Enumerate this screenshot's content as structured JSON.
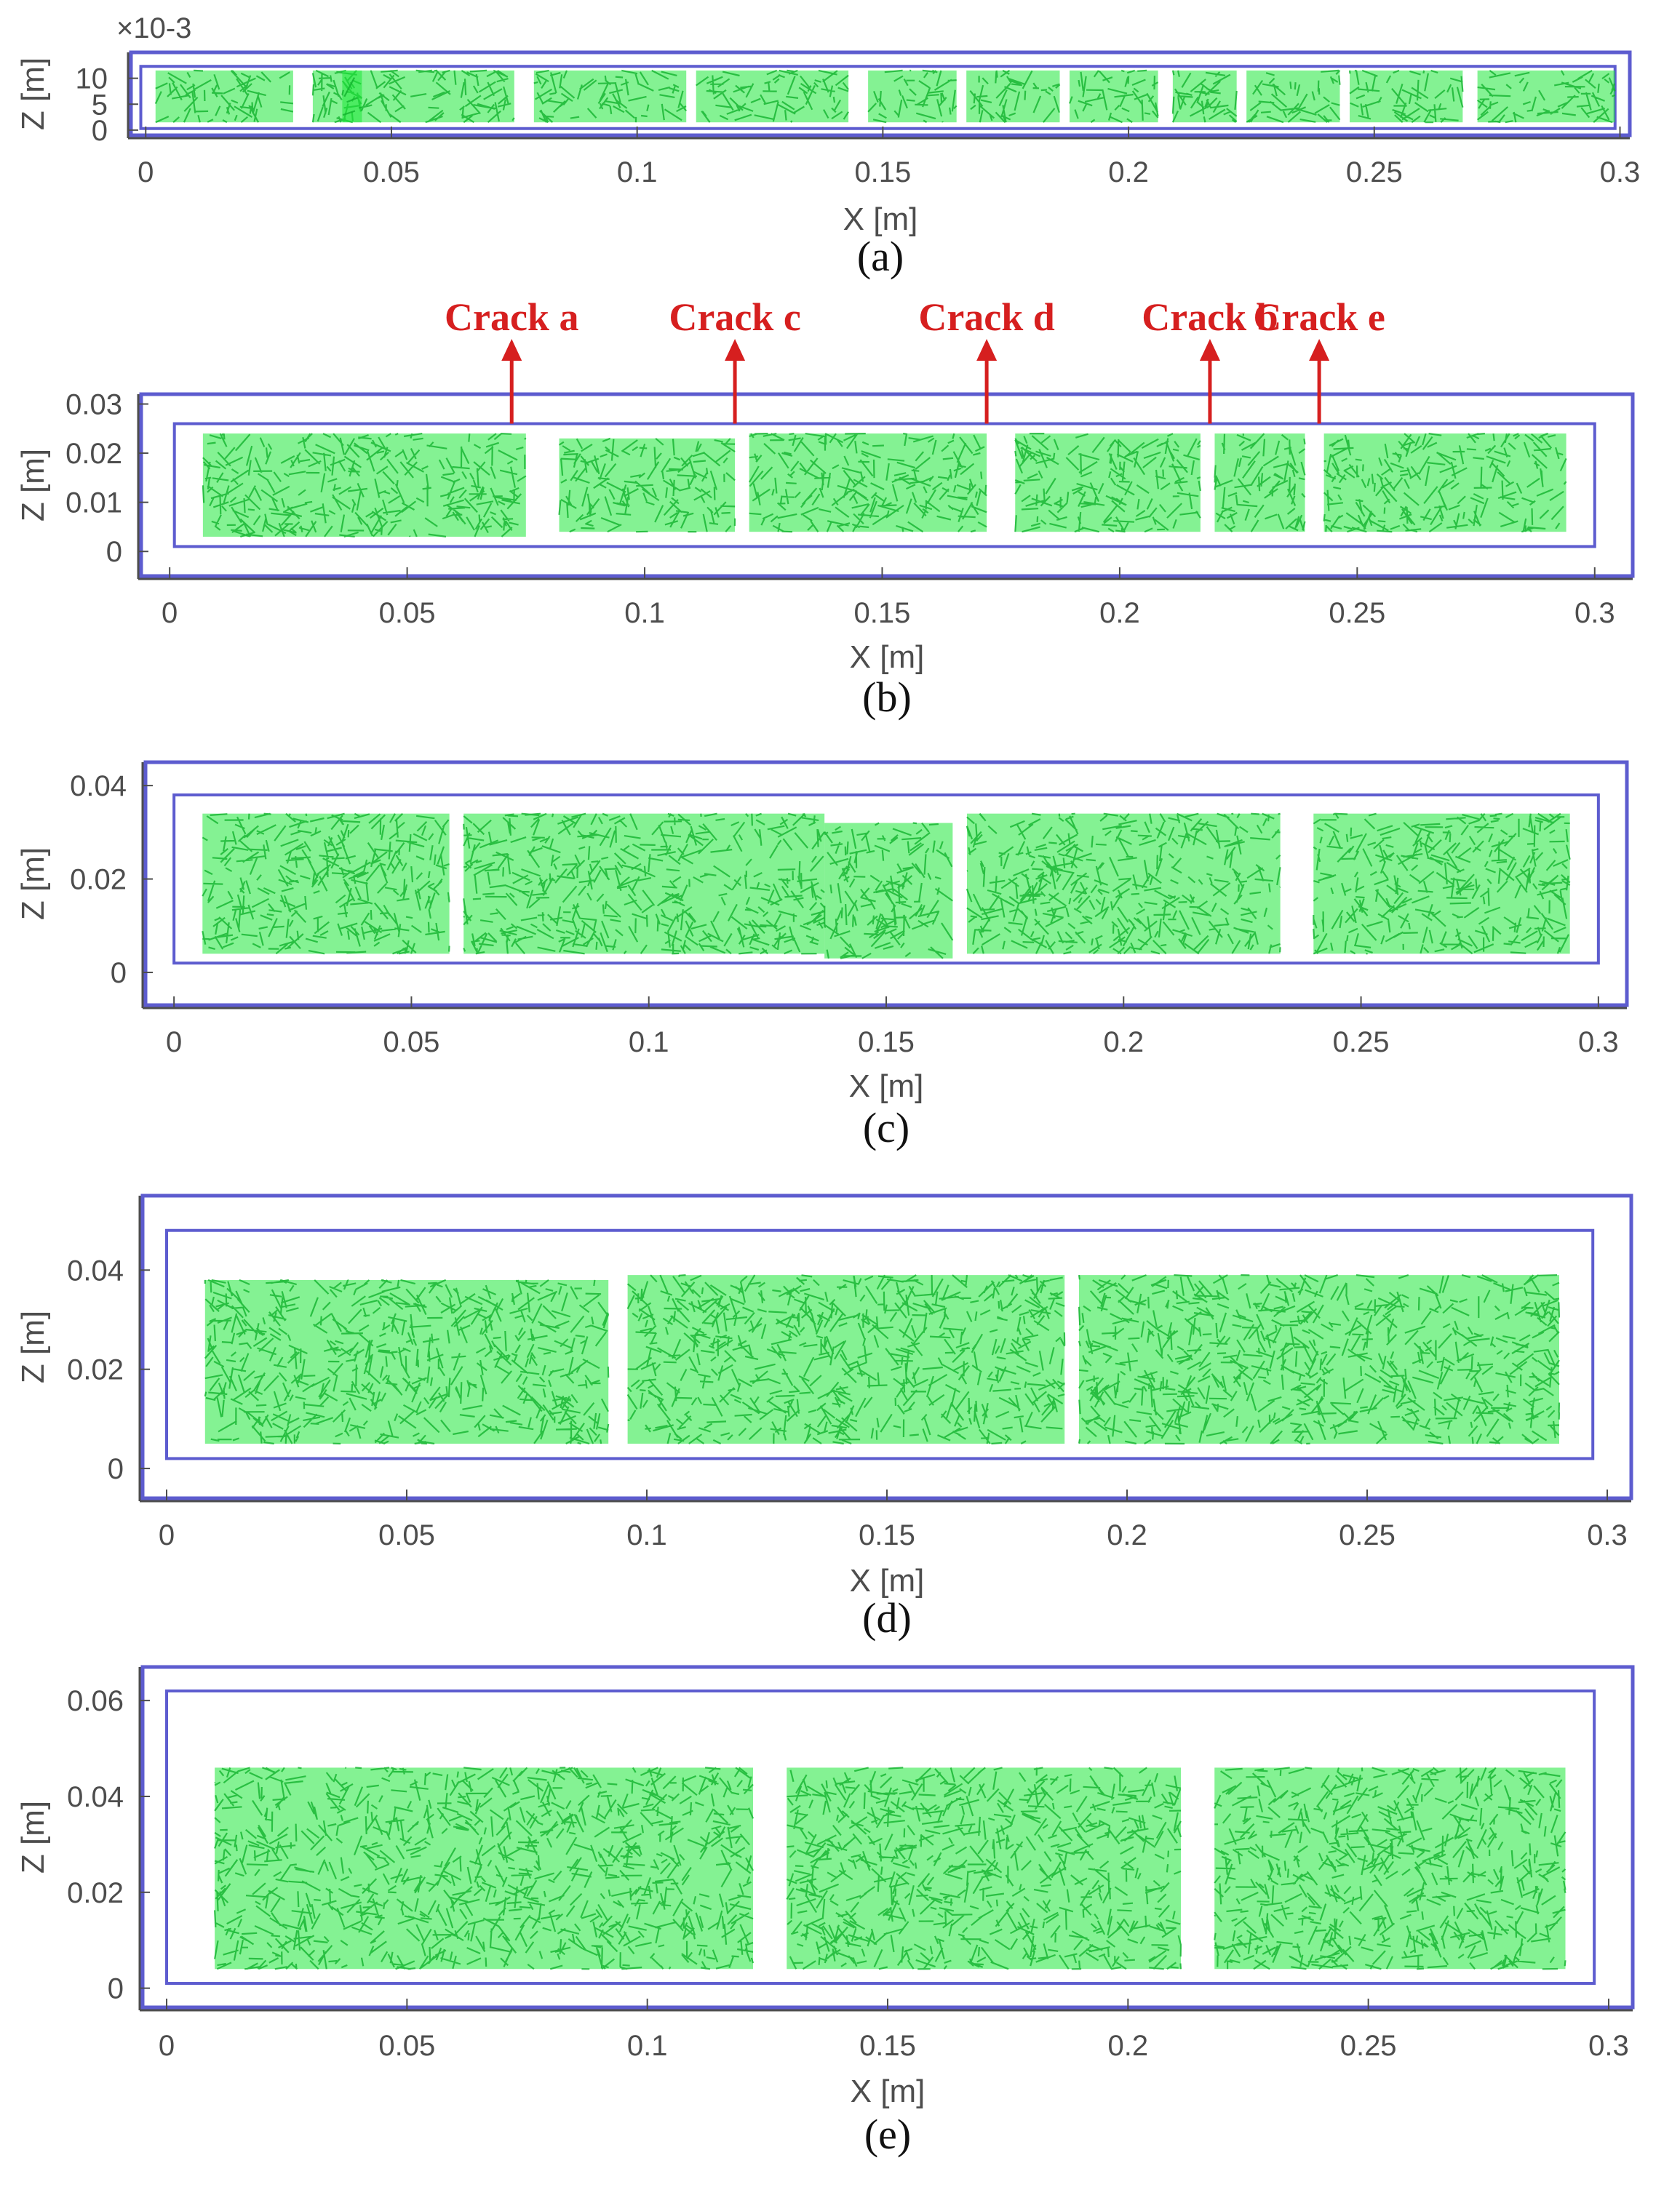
{
  "colors": {
    "frame": "#5d5ccf",
    "fibers": "#1fe83a",
    "fibers_dark": "#13b22e",
    "crack": "#d61f1f",
    "axis": "#4d4d4d"
  },
  "chart_data": [
    {
      "type": "scatter",
      "caption": "(a)",
      "xlabel": "X [m]",
      "ylabel": "Z [m]",
      "exponent_label": "×10-3",
      "xlim": [
        -0.003,
        0.302
      ],
      "ylim": [
        -1,
        15
      ],
      "xticks": [
        "0",
        "0.05",
        "0.1",
        "0.15",
        "0.2",
        "0.25",
        "0.3"
      ],
      "xtick_values": [
        0,
        0.05,
        0.1,
        0.15,
        0.2,
        0.25,
        0.3
      ],
      "yticks": [
        "0",
        "5",
        "10"
      ],
      "ytick_values": [
        0,
        5,
        10
      ],
      "inner_frame": {
        "x": [
          -0.001,
          0.299
        ],
        "z": [
          0.3,
          12.3
        ]
      },
      "fiber_segments": [
        {
          "x": [
            0.002,
            0.03
          ],
          "z": [
            1.5,
            11.5
          ]
        },
        {
          "x": [
            0.034,
            0.044
          ],
          "z": [
            1.5,
            11.5
          ]
        },
        {
          "x": [
            0.04,
            0.075
          ],
          "z": [
            1.5,
            11.5
          ]
        },
        {
          "x": [
            0.079,
            0.11
          ],
          "z": [
            1.5,
            11.5
          ]
        },
        {
          "x": [
            0.112,
            0.143
          ],
          "z": [
            1.5,
            11.5
          ]
        },
        {
          "x": [
            0.147,
            0.165
          ],
          "z": [
            1.5,
            11.5
          ]
        },
        {
          "x": [
            0.167,
            0.186
          ],
          "z": [
            1.5,
            11.5
          ]
        },
        {
          "x": [
            0.188,
            0.206
          ],
          "z": [
            1.5,
            11.5
          ]
        },
        {
          "x": [
            0.209,
            0.222
          ],
          "z": [
            1.5,
            11.5
          ]
        },
        {
          "x": [
            0.224,
            0.243
          ],
          "z": [
            1.5,
            11.5
          ]
        },
        {
          "x": [
            0.245,
            0.268
          ],
          "z": [
            1.5,
            11.5
          ]
        },
        {
          "x": [
            0.271,
            0.299
          ],
          "z": [
            1.5,
            11.5
          ]
        }
      ]
    },
    {
      "type": "scatter",
      "caption": "(b)",
      "xlabel": "X [m]",
      "ylabel": "Z [m]",
      "xlim": [
        -0.006,
        0.308
      ],
      "ylim": [
        -0.005,
        0.032
      ],
      "xticks": [
        "0",
        "0.05",
        "0.1",
        "0.15",
        "0.2",
        "0.25",
        "0.3"
      ],
      "xtick_values": [
        0,
        0.05,
        0.1,
        0.15,
        0.2,
        0.25,
        0.3
      ],
      "yticks": [
        "0",
        "0.01",
        "0.02",
        "0.03"
      ],
      "ytick_values": [
        0,
        0.01,
        0.02,
        0.03
      ],
      "inner_frame": {
        "x": [
          0.001,
          0.3
        ],
        "z": [
          0.001,
          0.026
        ]
      },
      "fiber_segments": [
        {
          "x": [
            0.007,
            0.075
          ],
          "z": [
            0.003,
            0.024
          ]
        },
        {
          "x": [
            0.082,
            0.119
          ],
          "z": [
            0.004,
            0.023
          ]
        },
        {
          "x": [
            0.122,
            0.172
          ],
          "z": [
            0.004,
            0.024
          ]
        },
        {
          "x": [
            0.178,
            0.217
          ],
          "z": [
            0.004,
            0.024
          ]
        },
        {
          "x": [
            0.22,
            0.239
          ],
          "z": [
            0.004,
            0.024
          ]
        },
        {
          "x": [
            0.243,
            0.294
          ],
          "z": [
            0.004,
            0.024
          ]
        }
      ],
      "cracks": [
        {
          "label": "Crack a",
          "x": 0.072
        },
        {
          "label": "Crack c",
          "x": 0.119
        },
        {
          "label": "Crack d",
          "x": 0.172
        },
        {
          "label": "Crack b",
          "x": 0.219
        },
        {
          "label": "Crack e",
          "x": 0.242
        }
      ]
    },
    {
      "type": "scatter",
      "caption": "(c)",
      "xlabel": "X [m]",
      "ylabel": "Z [m]",
      "xlim": [
        -0.006,
        0.306
      ],
      "ylim": [
        -0.007,
        0.045
      ],
      "xticks": [
        "0",
        "0.05",
        "0.1",
        "0.15",
        "0.2",
        "0.25",
        "0.3"
      ],
      "xtick_values": [
        0,
        0.05,
        0.1,
        0.15,
        0.2,
        0.25,
        0.3
      ],
      "yticks": [
        "0",
        "0.02",
        "0.04"
      ],
      "ytick_values": [
        0,
        0.02,
        0.04
      ],
      "inner_frame": {
        "x": [
          0.0,
          0.3
        ],
        "z": [
          0.002,
          0.038
        ]
      },
      "fiber_segments": [
        {
          "x": [
            0.006,
            0.058
          ],
          "z": [
            0.004,
            0.034
          ]
        },
        {
          "x": [
            0.061,
            0.137
          ],
          "z": [
            0.004,
            0.034
          ]
        },
        {
          "x": [
            0.137,
            0.164
          ],
          "z": [
            0.003,
            0.032
          ]
        },
        {
          "x": [
            0.167,
            0.233
          ],
          "z": [
            0.004,
            0.034
          ]
        },
        {
          "x": [
            0.24,
            0.294
          ],
          "z": [
            0.004,
            0.034
          ]
        }
      ]
    },
    {
      "type": "scatter",
      "caption": "(d)",
      "xlabel": "X [m]",
      "ylabel": "Z [m]",
      "xlim": [
        -0.005,
        0.305
      ],
      "ylim": [
        -0.006,
        0.055
      ],
      "xticks": [
        "0",
        "0.05",
        "0.1",
        "0.15",
        "0.2",
        "0.25",
        "0.3"
      ],
      "xtick_values": [
        0,
        0.05,
        0.1,
        0.15,
        0.2,
        0.25,
        0.3
      ],
      "yticks": [
        "0",
        "0.02",
        "0.04"
      ],
      "ytick_values": [
        0,
        0.02,
        0.04
      ],
      "inner_frame": {
        "x": [
          0.0,
          0.297
        ],
        "z": [
          0.002,
          0.048
        ]
      },
      "fiber_segments": [
        {
          "x": [
            0.008,
            0.092
          ],
          "z": [
            0.005,
            0.038
          ]
        },
        {
          "x": [
            0.096,
            0.187
          ],
          "z": [
            0.005,
            0.039
          ]
        },
        {
          "x": [
            0.19,
            0.29
          ],
          "z": [
            0.005,
            0.039
          ]
        }
      ]
    },
    {
      "type": "scatter",
      "caption": "(e)",
      "xlabel": "X [m]",
      "ylabel": "Z [m]",
      "xlim": [
        -0.005,
        0.305
      ],
      "ylim": [
        -0.004,
        0.067
      ],
      "xticks": [
        "0",
        "0.05",
        "0.1",
        "0.15",
        "0.2",
        "0.25",
        "0.3"
      ],
      "xtick_values": [
        0,
        0.05,
        0.1,
        0.15,
        0.2,
        0.25,
        0.3
      ],
      "yticks": [
        "0",
        "0.02",
        "0.04",
        "0.06"
      ],
      "ytick_values": [
        0,
        0.02,
        0.04,
        0.06
      ],
      "inner_frame": {
        "x": [
          0.0,
          0.297
        ],
        "z": [
          0.001,
          0.062
        ]
      },
      "fiber_segments": [
        {
          "x": [
            0.01,
            0.122
          ],
          "z": [
            0.004,
            0.046
          ]
        },
        {
          "x": [
            0.129,
            0.211
          ],
          "z": [
            0.004,
            0.046
          ]
        },
        {
          "x": [
            0.218,
            0.291
          ],
          "z": [
            0.004,
            0.046
          ]
        }
      ]
    }
  ]
}
